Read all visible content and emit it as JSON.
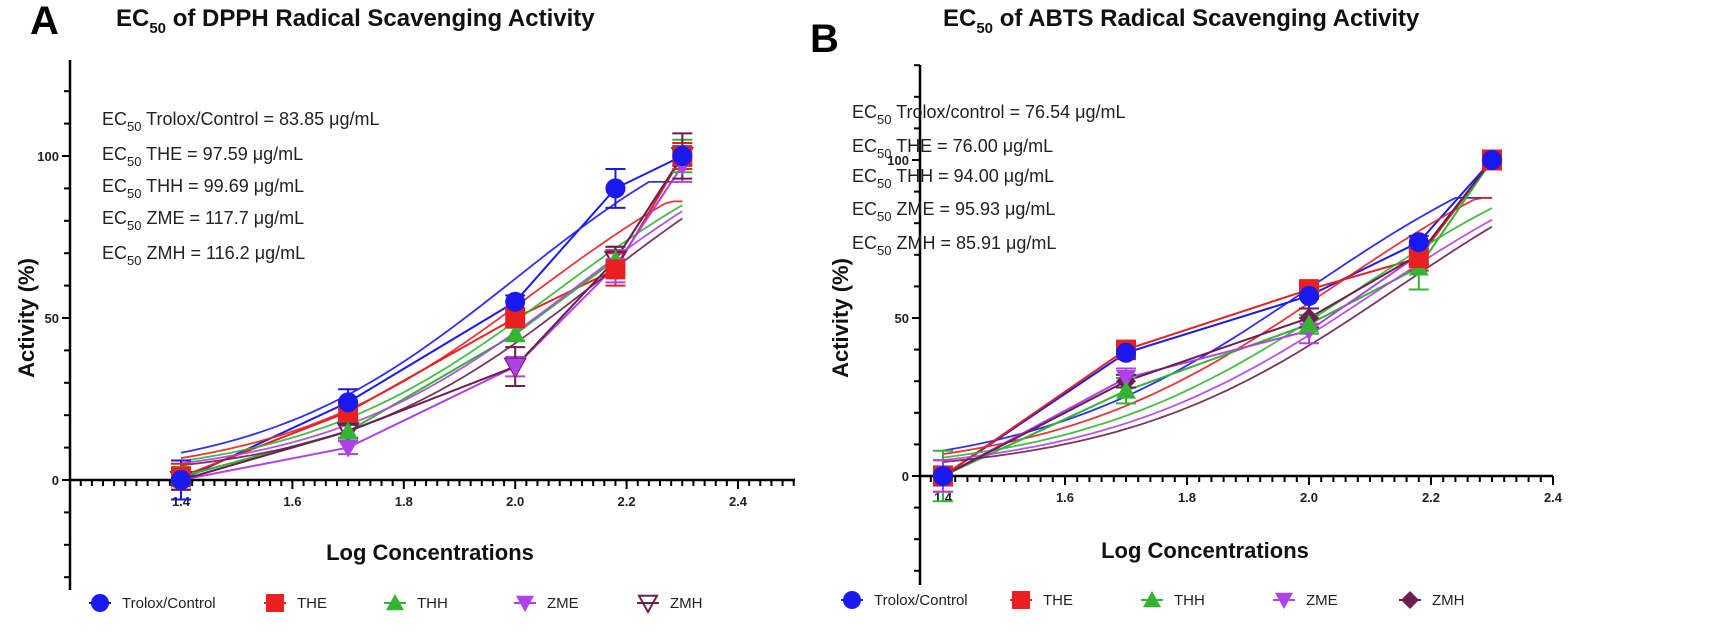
{
  "chart_data": [
    {
      "panel": "A",
      "type": "line",
      "title": "EC50 of DPPH Radical Scavenging Activity",
      "title_parts": {
        "prefix": "EC",
        "sub": "50",
        "suffix": " of DPPH Radical Scavenging Activity"
      },
      "xlabel": "Log Concentrations",
      "ylabel": "Activity (%)",
      "xlim": [
        1.2,
        2.4
      ],
      "ylim": [
        -30,
        130
      ],
      "xticks": [
        1.4,
        1.6,
        1.8,
        2.0,
        2.2,
        2.4
      ],
      "xtick_labels": [
        "1.4",
        "1.6",
        "1.8",
        "2.0",
        "2.2",
        "2.4"
      ],
      "yticks": [
        0,
        50,
        100
      ],
      "ytick_labels": [
        "0",
        "50",
        "100"
      ],
      "grid": false,
      "legend_position": "bottom",
      "x": [
        1.4,
        1.7,
        2.0,
        2.18,
        2.3
      ],
      "series": [
        {
          "name": "Trolox/Control",
          "marker": "circle",
          "color": "#1a1aee",
          "values": [
            0,
            24,
            55,
            90,
            100
          ],
          "errors": [
            6,
            4,
            2,
            6,
            3
          ],
          "fit_end": 92
        },
        {
          "name": "THE",
          "marker": "square",
          "color": "#e82020",
          "values": [
            1,
            21,
            50,
            65,
            100
          ],
          "errors": [
            4,
            3,
            3,
            5,
            4
          ],
          "fit_end": 86
        },
        {
          "name": "THH",
          "marker": "triangle-up",
          "color": "#33b533",
          "values": [
            1,
            15,
            45,
            68,
            100
          ],
          "errors": [
            3,
            3,
            2,
            4,
            5
          ],
          "fit_end": 86
        },
        {
          "name": "ZME",
          "marker": "triangle-down",
          "color": "#b040e8",
          "values": [
            0,
            10,
            35,
            66,
            97
          ],
          "errors": [
            3,
            2,
            3,
            5,
            5
          ],
          "fit_end": 88
        },
        {
          "name": "ZMH",
          "marker": "triangle-down-open",
          "color": "#6b1f4f",
          "values": [
            0,
            15,
            35,
            68,
            100
          ],
          "errors": [
            3,
            2,
            6,
            4,
            7
          ],
          "fit_end": 90
        }
      ],
      "annotations": [
        {
          "prefix": "EC",
          "sub": "50",
          "text": " Trolox/Control = 83.85 μg/mL"
        },
        {
          "prefix": "EC",
          "sub": "50",
          "text": " THE = 97.59 μg/mL"
        },
        {
          "prefix": "EC",
          "sub": "50",
          "text": " THH = 99.69 μg/mL"
        },
        {
          "prefix": "EC",
          "sub": "50",
          "text": " ZME = 117.7 μg/mL"
        },
        {
          "prefix": "EC",
          "sub": "50",
          "text": " ZMH = 116.2 μg/mL"
        }
      ]
    },
    {
      "panel": "B",
      "type": "line",
      "title": "EC50 of ABTS Radical Scavenging Activity",
      "title_parts": {
        "prefix": "EC",
        "sub": "50",
        "suffix": " of ABTS Radical Scavenging Activity"
      },
      "xlabel": "Log Concentrations",
      "ylabel": "Activity (%)",
      "xlim": [
        1.2,
        2.4
      ],
      "ylim": [
        -30,
        130
      ],
      "xticks": [
        1.4,
        1.6,
        1.8,
        2.0,
        2.2,
        2.4
      ],
      "xtick_labels": [
        "1.4",
        "1.6",
        "1.8",
        "2.0",
        "2.2",
        "2.4"
      ],
      "yticks": [
        0,
        50,
        100
      ],
      "ytick_labels": [
        "0",
        "50",
        "100"
      ],
      "grid": false,
      "legend_position": "bottom",
      "x": [
        1.4,
        1.7,
        2.0,
        2.18,
        2.3
      ],
      "series": [
        {
          "name": "Trolox/Control",
          "marker": "circle",
          "color": "#1a1aee",
          "values": [
            0,
            39,
            57,
            74,
            100
          ],
          "errors": [
            3,
            2,
            4,
            2,
            2
          ],
          "fit_end": 88
        },
        {
          "name": "THE",
          "marker": "square",
          "color": "#e82020",
          "values": [
            0,
            40,
            59,
            69,
            100
          ],
          "errors": [
            5,
            2,
            3,
            4,
            3
          ],
          "fit_end": 88
        },
        {
          "name": "THH",
          "marker": "triangle-up",
          "color": "#33b533",
          "values": [
            0,
            27,
            48,
            66,
            100
          ],
          "errors": [
            8,
            4,
            3,
            7,
            2
          ],
          "fit_end": 86
        },
        {
          "name": "ZME",
          "marker": "triangle-down",
          "color": "#b040e8",
          "values": [
            0,
            31,
            46,
            70,
            100
          ],
          "errors": [
            5,
            3,
            4,
            3,
            2
          ],
          "fit_end": 86
        },
        {
          "name": "ZMH",
          "marker": "diamond",
          "color": "#6b1f4f",
          "values": [
            0,
            30,
            50,
            70,
            100
          ],
          "errors": [
            3,
            2,
            3,
            3,
            2
          ],
          "fit_end": 88
        }
      ],
      "annotations": [
        {
          "prefix": "EC",
          "sub": "50",
          "text": " Trolox/control = 76.54 μg/mL"
        },
        {
          "prefix": "EC",
          "sub": "50",
          "text": " THE = 76.00 μg/mL"
        },
        {
          "prefix": "EC",
          "sub": "50",
          "text": " THH = 94.00 μg/mL"
        },
        {
          "prefix": "EC",
          "sub": "50",
          "text": " ZME = 95.93 μg/mL"
        },
        {
          "prefix": "EC",
          "sub": "50",
          "text": " ZMH = 85.91 μg/mL"
        }
      ]
    }
  ],
  "panels": [
    {
      "letter": "A"
    },
    {
      "letter": "B"
    }
  ],
  "legend": [
    {
      "label": "Trolox/Control"
    },
    {
      "label": "THE"
    },
    {
      "label": "THH"
    },
    {
      "label": "ZME"
    },
    {
      "label": "ZMH"
    }
  ],
  "fit_color_extra": "#ffb870"
}
